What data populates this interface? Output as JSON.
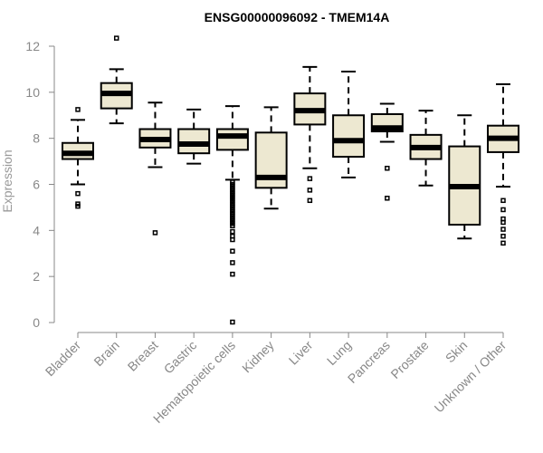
{
  "chart_data": {
    "type": "box",
    "title": "ENSG00000096092 - TMEM14A",
    "ylabel": "Expression",
    "xlabel": "",
    "ylim": [
      0,
      12
    ],
    "yticks": [
      "0",
      "2",
      "4",
      "6",
      "8",
      "10",
      "12"
    ],
    "colors": {
      "box_fill": "#ede8d1",
      "stroke": "#000000",
      "axis": "#888888",
      "label": "#888888"
    },
    "categories": [
      "Bladder",
      "Brain",
      "Breast",
      "Gastric",
      "Hematopoietic cells",
      "Kidney",
      "Liver",
      "Lung",
      "Pancreas",
      "Prostate",
      "Skin",
      "Unknown / Other"
    ],
    "boxes": [
      {
        "name": "Bladder",
        "whisker_low": 6.0,
        "q1": 7.1,
        "median": 7.35,
        "q3": 7.8,
        "whisker_high": 8.8,
        "outliers": [
          9.25,
          5.6,
          5.15,
          5.05
        ]
      },
      {
        "name": "Brain",
        "whisker_low": 8.65,
        "q1": 9.3,
        "median": 9.95,
        "q3": 10.4,
        "whisker_high": 11.0,
        "outliers": [
          12.35
        ]
      },
      {
        "name": "Breast",
        "whisker_low": 6.75,
        "q1": 7.6,
        "median": 7.95,
        "q3": 8.4,
        "whisker_high": 9.55,
        "outliers": [
          3.9
        ]
      },
      {
        "name": "Gastric",
        "whisker_low": 6.9,
        "q1": 7.35,
        "median": 7.75,
        "q3": 8.4,
        "whisker_high": 9.25,
        "outliers": []
      },
      {
        "name": "Hematopoietic cells",
        "whisker_low": 6.2,
        "q1": 7.5,
        "median": 8.1,
        "q3": 8.4,
        "whisker_high": 9.4,
        "outliers": [
          6.1,
          6.0,
          5.9,
          5.8,
          5.7,
          5.6,
          5.5,
          5.4,
          5.3,
          5.2,
          5.1,
          5.0,
          4.9,
          4.8,
          4.7,
          4.6,
          4.5,
          4.4,
          4.3,
          4.2,
          3.95,
          3.75,
          3.6,
          3.1,
          2.6,
          2.1,
          0.02
        ]
      },
      {
        "name": "Kidney",
        "whisker_low": 4.95,
        "q1": 5.85,
        "median": 6.3,
        "q3": 8.25,
        "whisker_high": 9.35,
        "outliers": []
      },
      {
        "name": "Liver",
        "whisker_low": 6.7,
        "q1": 8.6,
        "median": 9.2,
        "q3": 9.95,
        "whisker_high": 11.1,
        "outliers": [
          6.25,
          5.75,
          5.3
        ]
      },
      {
        "name": "Lung",
        "whisker_low": 6.3,
        "q1": 7.2,
        "median": 7.9,
        "q3": 9.0,
        "whisker_high": 10.9,
        "outliers": []
      },
      {
        "name": "Pancreas",
        "whisker_low": 7.85,
        "q1": 8.3,
        "median": 8.45,
        "q3": 9.05,
        "whisker_high": 9.5,
        "outliers": [
          6.7,
          5.4
        ]
      },
      {
        "name": "Prostate",
        "whisker_low": 5.95,
        "q1": 7.1,
        "median": 7.6,
        "q3": 8.15,
        "whisker_high": 9.2,
        "outliers": []
      },
      {
        "name": "Skin",
        "whisker_low": 3.65,
        "q1": 4.25,
        "median": 5.9,
        "q3": 7.65,
        "whisker_high": 9.0,
        "outliers": []
      },
      {
        "name": "Unknown / Other",
        "whisker_low": 5.9,
        "q1": 7.4,
        "median": 8.0,
        "q3": 8.55,
        "whisker_high": 10.35,
        "outliers": [
          5.3,
          4.9,
          4.5,
          4.35,
          4.05,
          3.75,
          3.45
        ]
      }
    ]
  }
}
